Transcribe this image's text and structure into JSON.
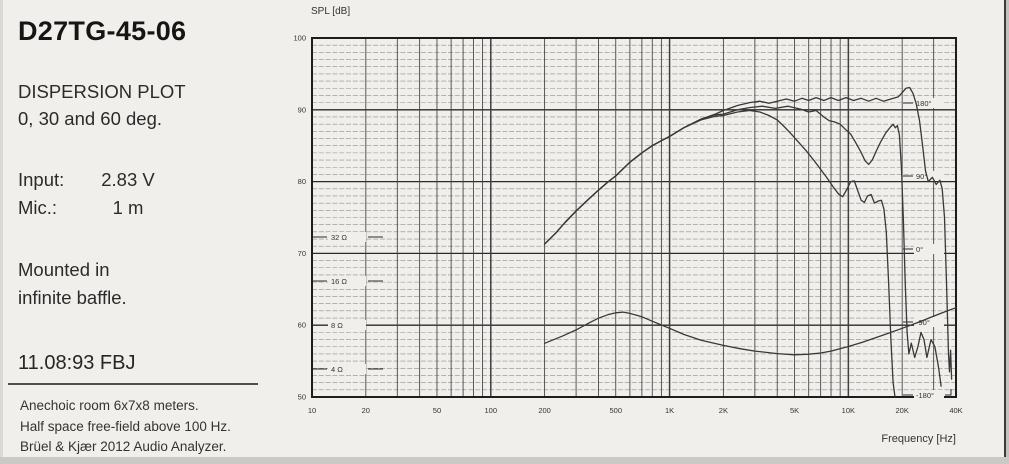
{
  "panel": {
    "title": "D27TG-45-06",
    "plot_type": "DISPERSION PLOT",
    "angles": "0, 30 and 60 deg.",
    "input_label": "Input:",
    "input_value": "2.83 V",
    "mic_label": "Mic.:",
    "mic_value": "1 m",
    "mounted_line1": "Mounted in",
    "mounted_line2": "infinite baffle.",
    "date": "11.08:93 FBJ",
    "footnotes": [
      "Anechoic room 6x7x8 meters.",
      "Half space free-field above 100 Hz.",
      "Brüel & Kjær 2012 Audio Analyzer."
    ]
  },
  "chart_data": {
    "type": "line",
    "title": "SPL [dB]",
    "xlabel": "Frequency [Hz]",
    "x_scale": "log",
    "x_range": [
      10,
      40000
    ],
    "y_range": [
      50,
      100
    ],
    "y_unit": "dB",
    "grid": "on (1 dB horizontal, log vertical)",
    "x_tick_values": [
      10,
      20,
      50,
      100,
      200,
      500,
      1000,
      2000,
      5000,
      10000,
      20000,
      40000
    ],
    "x_tick_labels": [
      "10",
      "20",
      "50",
      "100",
      "200",
      "500",
      "1K",
      "2K",
      "5K",
      "10K",
      "20K",
      "40K"
    ],
    "y_tick_values": [
      50,
      60,
      70,
      80,
      90,
      100
    ],
    "y_tick_labels": [
      "50",
      "60",
      "70",
      "80",
      "90",
      "100"
    ],
    "impedance_scale": {
      "unit": "Ω",
      "values": [
        32,
        16,
        8,
        4
      ],
      "labels": [
        "32 Ω",
        "16 Ω",
        "8 Ω",
        "4 Ω"
      ]
    },
    "phase_scale": {
      "unit": "deg",
      "values": [
        180,
        90,
        0,
        -90,
        -180
      ],
      "labels": [
        "180°",
        "90°",
        "0°",
        "-90°",
        "-180°"
      ]
    },
    "series": [
      {
        "id": "spl-0deg",
        "name": "SPL 0 deg",
        "unit": "dB",
        "points": [
          [
            200,
            71.3
          ],
          [
            230,
            72.8
          ],
          [
            260,
            74.3
          ],
          [
            300,
            75.9
          ],
          [
            350,
            77.5
          ],
          [
            400,
            78.8
          ],
          [
            450,
            79.9
          ],
          [
            500,
            80.8
          ],
          [
            600,
            82.7
          ],
          [
            700,
            84.0
          ],
          [
            800,
            85.0
          ],
          [
            900,
            85.7
          ],
          [
            1000,
            86.3
          ],
          [
            1200,
            87.5
          ],
          [
            1500,
            88.7
          ],
          [
            1800,
            89.4
          ],
          [
            2000,
            89.9
          ],
          [
            2400,
            90.6
          ],
          [
            2800,
            91.0
          ],
          [
            3200,
            91.2
          ],
          [
            3600,
            90.9
          ],
          [
            4000,
            91.2
          ],
          [
            4500,
            91.5
          ],
          [
            5000,
            91.2
          ],
          [
            5500,
            91.6
          ],
          [
            6000,
            91.3
          ],
          [
            6600,
            91.7
          ],
          [
            7300,
            91.3
          ],
          [
            8000,
            91.7
          ],
          [
            8800,
            91.3
          ],
          [
            9700,
            91.7
          ],
          [
            10700,
            91.3
          ],
          [
            11800,
            91.6
          ],
          [
            13000,
            91.2
          ],
          [
            14300,
            91.6
          ],
          [
            15700,
            91.2
          ],
          [
            17300,
            91.5
          ],
          [
            19000,
            91.8
          ],
          [
            20000,
            92.4
          ],
          [
            21000,
            93.0
          ],
          [
            22000,
            93.1
          ],
          [
            23000,
            92.3
          ],
          [
            24000,
            90.8
          ],
          [
            25000,
            88.5
          ],
          [
            26000,
            85.0
          ],
          [
            27000,
            81.5
          ],
          [
            28000,
            80.0
          ],
          [
            29500,
            80.6
          ],
          [
            31000,
            79.6
          ],
          [
            32500,
            80.2
          ],
          [
            33500,
            79.0
          ],
          [
            34500,
            75.0
          ],
          [
            35500,
            65.0
          ],
          [
            36300,
            56.0
          ],
          [
            36800,
            53.5
          ],
          [
            37300,
            56.5
          ],
          [
            37800,
            52.5
          ]
        ]
      },
      {
        "id": "spl-30deg",
        "name": "SPL 30 deg",
        "unit": "dB",
        "points": [
          [
            200,
            71.3
          ],
          [
            230,
            72.8
          ],
          [
            260,
            74.3
          ],
          [
            300,
            75.9
          ],
          [
            350,
            77.5
          ],
          [
            400,
            78.8
          ],
          [
            450,
            79.9
          ],
          [
            500,
            80.8
          ],
          [
            600,
            82.7
          ],
          [
            700,
            84.0
          ],
          [
            800,
            85.0
          ],
          [
            900,
            85.7
          ],
          [
            1000,
            86.3
          ],
          [
            1200,
            87.5
          ],
          [
            1500,
            88.7
          ],
          [
            1800,
            89.3
          ],
          [
            2000,
            89.4
          ],
          [
            2400,
            90.0
          ],
          [
            2800,
            90.3
          ],
          [
            3300,
            90.5
          ],
          [
            3900,
            90.2
          ],
          [
            4600,
            90.5
          ],
          [
            5400,
            90.1
          ],
          [
            6000,
            89.7
          ],
          [
            6600,
            89.9
          ],
          [
            7200,
            89.1
          ],
          [
            7800,
            88.5
          ],
          [
            8400,
            88.3
          ],
          [
            9000,
            88.0
          ],
          [
            9600,
            87.3
          ],
          [
            10300,
            86.6
          ],
          [
            11000,
            85.4
          ],
          [
            11700,
            84.2
          ],
          [
            12400,
            82.9
          ],
          [
            13000,
            82.4
          ],
          [
            13600,
            83.0
          ],
          [
            14300,
            84.2
          ],
          [
            15200,
            85.6
          ],
          [
            16200,
            86.8
          ],
          [
            17200,
            87.6
          ],
          [
            17800,
            88.0
          ],
          [
            18300,
            87.5
          ],
          [
            18800,
            87.8
          ],
          [
            19300,
            86.5
          ],
          [
            19800,
            82.0
          ],
          [
            20300,
            75.0
          ],
          [
            20800,
            66.0
          ],
          [
            21300,
            59.0
          ],
          [
            21800,
            56.0
          ],
          [
            22500,
            57.5
          ],
          [
            23500,
            55.5
          ],
          [
            24500,
            57.0
          ],
          [
            25500,
            59.0
          ],
          [
            26500,
            58.0
          ],
          [
            27500,
            55.5
          ],
          [
            29000,
            58.0
          ],
          [
            30500,
            57.0
          ],
          [
            32000,
            54.0
          ],
          [
            33000,
            51.5
          ]
        ]
      },
      {
        "id": "spl-60deg",
        "name": "SPL 60 deg",
        "unit": "dB",
        "points": [
          [
            200,
            71.3
          ],
          [
            230,
            72.8
          ],
          [
            260,
            74.3
          ],
          [
            300,
            75.9
          ],
          [
            350,
            77.5
          ],
          [
            400,
            78.8
          ],
          [
            450,
            79.9
          ],
          [
            500,
            80.8
          ],
          [
            600,
            82.7
          ],
          [
            700,
            84.0
          ],
          [
            800,
            85.0
          ],
          [
            900,
            85.7
          ],
          [
            1000,
            86.3
          ],
          [
            1200,
            87.5
          ],
          [
            1500,
            88.6
          ],
          [
            1800,
            89.1
          ],
          [
            2000,
            89.2
          ],
          [
            2400,
            89.7
          ],
          [
            2800,
            89.9
          ],
          [
            3200,
            89.7
          ],
          [
            3600,
            89.2
          ],
          [
            4000,
            88.6
          ],
          [
            4400,
            87.6
          ],
          [
            4800,
            86.6
          ],
          [
            5300,
            85.4
          ],
          [
            5800,
            84.3
          ],
          [
            6400,
            83.0
          ],
          [
            7000,
            81.7
          ],
          [
            7600,
            80.5
          ],
          [
            8200,
            79.3
          ],
          [
            8800,
            78.3
          ],
          [
            9300,
            77.9
          ],
          [
            9800,
            78.9
          ],
          [
            10300,
            80.0
          ],
          [
            10800,
            80.1
          ],
          [
            11300,
            78.7
          ],
          [
            11800,
            77.4
          ],
          [
            12300,
            77.1
          ],
          [
            12800,
            78.0
          ],
          [
            13400,
            78.2
          ],
          [
            14000,
            77.0
          ],
          [
            14700,
            77.3
          ],
          [
            15300,
            77.4
          ],
          [
            15800,
            76.2
          ],
          [
            16300,
            73.0
          ],
          [
            16800,
            66.0
          ],
          [
            17300,
            58.0
          ],
          [
            17800,
            52.0
          ],
          [
            18200,
            50.1
          ]
        ]
      },
      {
        "id": "impedance",
        "name": "Impedance",
        "unit": "Ω",
        "scale": "impedance",
        "points": [
          [
            200,
            6.0
          ],
          [
            250,
            6.7
          ],
          [
            300,
            7.4
          ],
          [
            350,
            8.2
          ],
          [
            400,
            8.9
          ],
          [
            450,
            9.4
          ],
          [
            500,
            9.7
          ],
          [
            550,
            9.8
          ],
          [
            600,
            9.6
          ],
          [
            700,
            9.1
          ],
          [
            800,
            8.5
          ],
          [
            900,
            8.0
          ],
          [
            1000,
            7.6
          ],
          [
            1200,
            6.9
          ],
          [
            1500,
            6.3
          ],
          [
            2000,
            5.8
          ],
          [
            2500,
            5.5
          ],
          [
            3000,
            5.3
          ],
          [
            4000,
            5.1
          ],
          [
            5000,
            5.0
          ],
          [
            6000,
            5.05
          ],
          [
            7000,
            5.15
          ],
          [
            8000,
            5.3
          ],
          [
            10000,
            5.7
          ],
          [
            12000,
            6.1
          ],
          [
            15000,
            6.7
          ],
          [
            20000,
            7.6
          ],
          [
            25000,
            8.4
          ],
          [
            30000,
            9.2
          ],
          [
            35000,
            9.9
          ],
          [
            40000,
            10.5
          ]
        ]
      }
    ]
  }
}
